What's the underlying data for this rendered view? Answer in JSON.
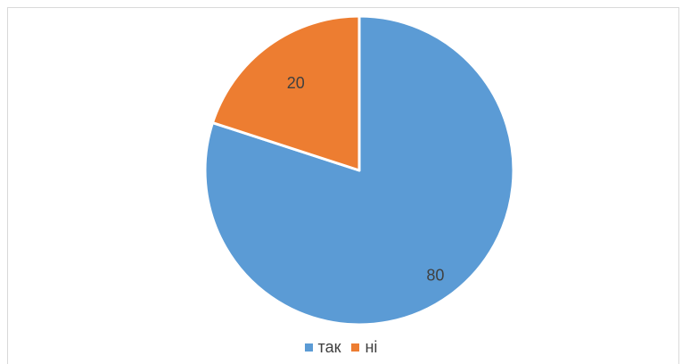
{
  "chart_data": {
    "type": "pie",
    "categories": [
      "так",
      "ні"
    ],
    "values": [
      80,
      20
    ],
    "data_labels": [
      "80",
      "20"
    ],
    "colors": [
      "#5b9bd5",
      "#ed7d31"
    ],
    "title": "",
    "legend_position": "bottom",
    "start_angle": "12 o'clock",
    "direction": "clockwise"
  }
}
